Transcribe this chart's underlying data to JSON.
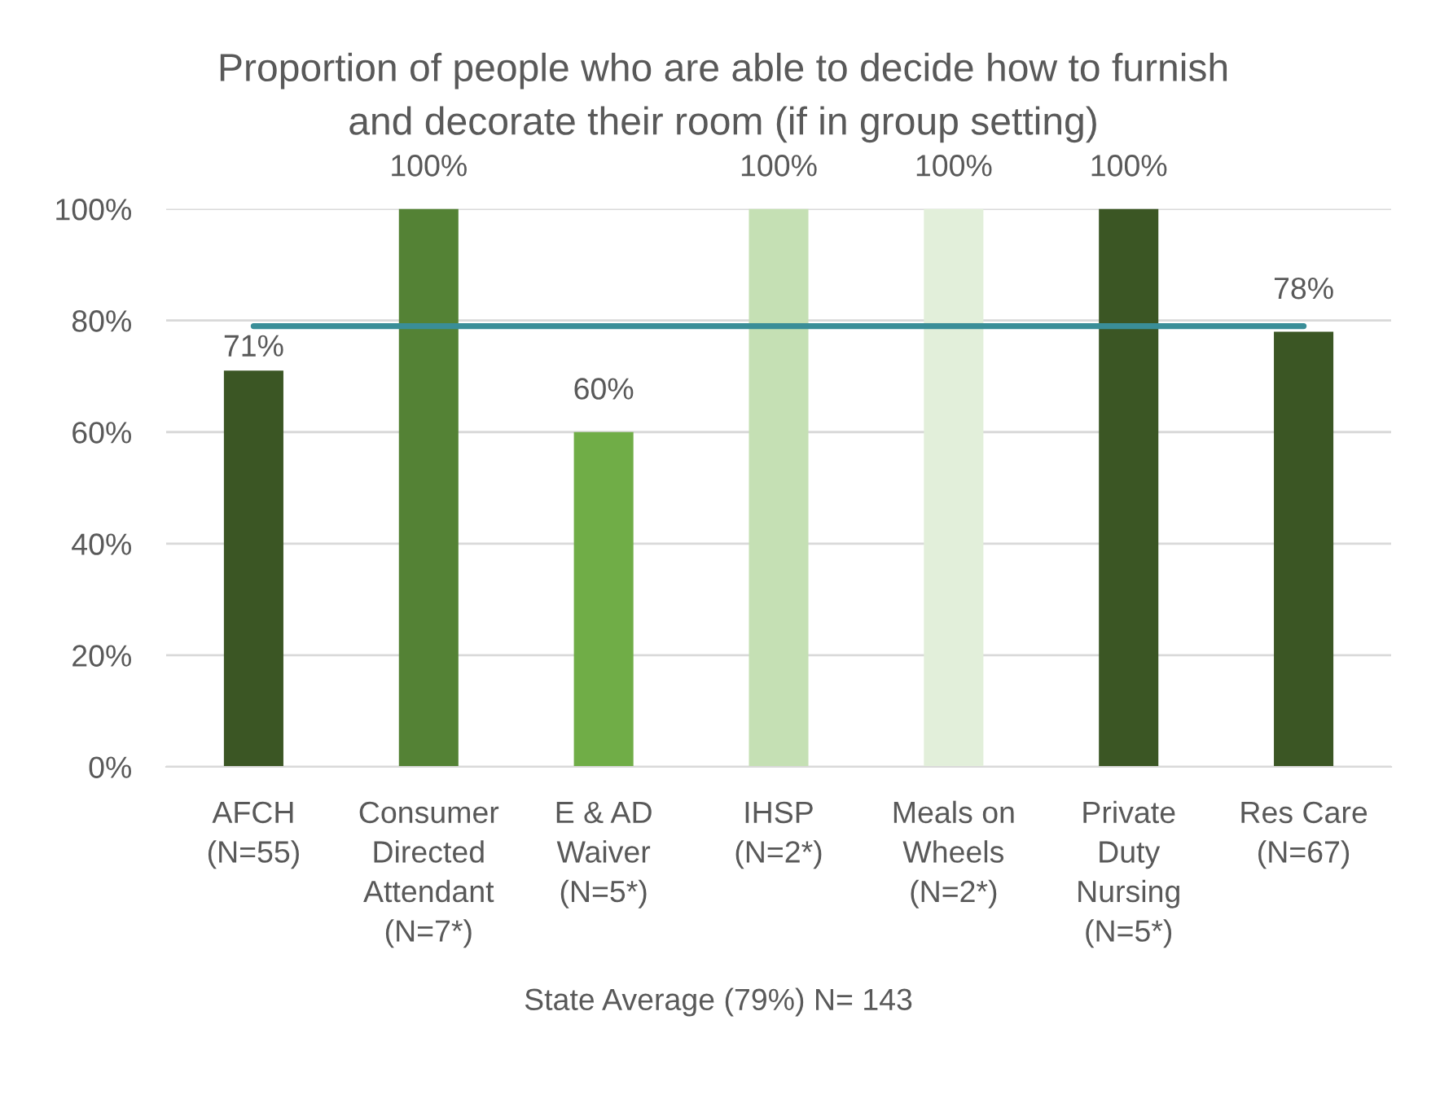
{
  "chart_data": {
    "type": "bar",
    "title": "Proportion of people who are able to decide how to furnish\nand decorate their room (if in group setting)",
    "xlabel": "State Average (79%) N= 143",
    "categories": [
      "AFCH\n(N=55)",
      "Consumer\nDirected\nAttendant\n(N=7*)",
      "E & AD\nWaiver\n(N=5*)",
      "IHSP\n(N=2*)",
      "Meals on\nWheels\n(N=2*)",
      "Private\nDuty\nNursing\n(N=5*)",
      "Res Care\n(N=67)"
    ],
    "series": [
      {
        "colors": [
          "#3b5624",
          "#548235",
          "#70ad47",
          "#c5e0b4",
          "#e2efda",
          "#3b5624",
          "#3b5624"
        ],
        "values": [
          71,
          100,
          60,
          100,
          100,
          100,
          78
        ],
        "value_labels": [
          "71%",
          "100%",
          "60%",
          "100%",
          "100%",
          "100%",
          "78%"
        ]
      },
      {
        "type": "line",
        "color": "#3a8e98",
        "values": [
          79,
          79,
          79,
          79,
          79,
          79,
          79
        ]
      }
    ],
    "ylim": [
      0,
      100
    ],
    "yticks": [
      {
        "value": 0,
        "label": "0%"
      },
      {
        "value": 20,
        "label": "20%"
      },
      {
        "value": 40,
        "label": "40%"
      },
      {
        "value": 60,
        "label": "60%"
      },
      {
        "value": 80,
        "label": "80%"
      },
      {
        "value": 100,
        "label": "100%"
      }
    ],
    "grid": "y"
  }
}
